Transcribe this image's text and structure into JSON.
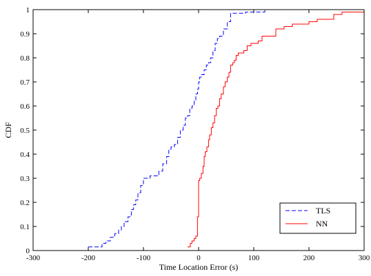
{
  "chart_data": {
    "type": "line",
    "title": "",
    "xlabel": "Time Location Error (s)",
    "ylabel": "CDF",
    "xlim": [
      -300,
      300
    ],
    "ylim": [
      0,
      1
    ],
    "xticks": [
      -300,
      -200,
      -100,
      0,
      100,
      200,
      300
    ],
    "yticks": [
      0,
      0.1,
      0.2,
      0.3,
      0.4,
      0.5,
      0.6,
      0.7,
      0.8,
      0.9,
      1
    ],
    "ytick_labels": [
      "0",
      "0.1",
      "0.2",
      "0.3",
      "0.4",
      "0.5",
      "0.6",
      "0.7",
      "0.8",
      "0.9",
      "1"
    ],
    "grid": false,
    "legend_position": "bottom-right",
    "series": [
      {
        "name": "TLS",
        "color": "#0000ff",
        "dash": "dashed",
        "x": [
          -200,
          -185,
          -175,
          -168,
          -160,
          -152,
          -145,
          -140,
          -135,
          -128,
          -122,
          -118,
          -114,
          -110,
          -105,
          -100,
          -95,
          -88,
          -80,
          -72,
          -65,
          -58,
          -54,
          -50,
          -44,
          -38,
          -33,
          -28,
          -24,
          -20,
          -16,
          -12,
          -8,
          -5,
          -2,
          0,
          2,
          5,
          10,
          14,
          18,
          22,
          26,
          30,
          34,
          38,
          45,
          52,
          58,
          70,
          85,
          100,
          120
        ],
        "y": [
          0.015,
          0.015,
          0.03,
          0.04,
          0.055,
          0.07,
          0.085,
          0.1,
          0.12,
          0.14,
          0.17,
          0.19,
          0.21,
          0.24,
          0.27,
          0.3,
          0.3,
          0.31,
          0.31,
          0.33,
          0.36,
          0.39,
          0.42,
          0.43,
          0.44,
          0.47,
          0.5,
          0.52,
          0.55,
          0.56,
          0.59,
          0.6,
          0.62,
          0.65,
          0.67,
          0.7,
          0.72,
          0.73,
          0.75,
          0.77,
          0.78,
          0.8,
          0.83,
          0.86,
          0.88,
          0.89,
          0.92,
          0.95,
          0.985,
          0.985,
          0.99,
          0.99,
          1.0
        ]
      },
      {
        "name": "NN",
        "color": "#ff0000",
        "dash": "solid",
        "x": [
          -20,
          -15,
          -12,
          -8,
          -5,
          -2,
          0,
          2,
          5,
          8,
          10,
          12,
          15,
          18,
          20,
          23,
          26,
          29,
          32,
          35,
          38,
          41,
          45,
          48,
          52,
          55,
          58,
          62,
          65,
          68,
          72,
          78,
          82,
          88,
          95,
          100,
          108,
          115,
          125,
          140,
          155,
          170,
          185,
          200,
          215,
          230,
          245,
          260,
          280,
          300
        ],
        "y": [
          0.015,
          0.03,
          0.04,
          0.05,
          0.06,
          0.14,
          0.29,
          0.3,
          0.32,
          0.35,
          0.39,
          0.41,
          0.43,
          0.46,
          0.48,
          0.51,
          0.53,
          0.56,
          0.59,
          0.6,
          0.63,
          0.65,
          0.68,
          0.7,
          0.72,
          0.74,
          0.77,
          0.78,
          0.79,
          0.81,
          0.82,
          0.82,
          0.83,
          0.85,
          0.86,
          0.86,
          0.87,
          0.89,
          0.89,
          0.92,
          0.93,
          0.94,
          0.94,
          0.95,
          0.96,
          0.96,
          0.98,
          0.99,
          0.99,
          0.995
        ]
      }
    ]
  }
}
